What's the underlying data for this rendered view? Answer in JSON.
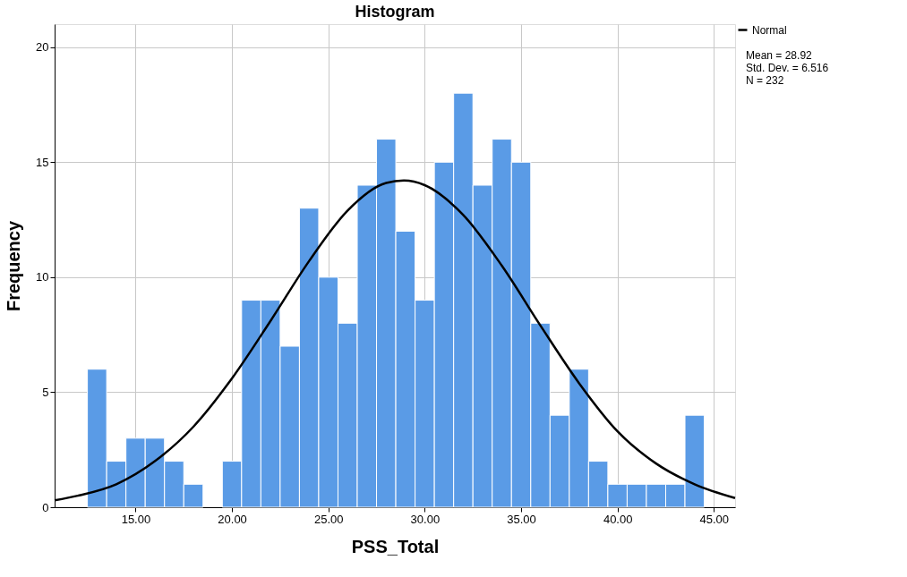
{
  "chart_data": {
    "type": "histogram",
    "title": "Histogram",
    "xlabel": "PSS_Total",
    "ylabel": "Frequency",
    "bins": [
      12.5,
      13.5,
      14.5,
      15.5,
      16.5,
      17.5,
      18.5,
      19.5,
      20.5,
      21.5,
      22.5,
      23.5,
      24.5,
      25.5,
      26.5,
      27.5,
      28.5,
      29.5,
      30.5,
      31.5,
      32.5,
      33.5,
      34.5,
      35.5,
      36.5,
      37.5,
      38.5,
      39.5,
      40.5,
      41.5,
      42.5,
      43.5,
      44.5
    ],
    "values": [
      6,
      2,
      3,
      3,
      2,
      1,
      0,
      2,
      9,
      9,
      7,
      13,
      10,
      8,
      14,
      16,
      12,
      9,
      15,
      18,
      14,
      16,
      15,
      8,
      4,
      6,
      2,
      1,
      1,
      1,
      1,
      4
    ],
    "color": "#5a9be6",
    "series": [
      {
        "type": "line",
        "name": "Normal",
        "color": "#000000",
        "x": [
          10.8,
          12,
          14,
          16,
          18,
          20,
          22,
          24,
          26,
          28,
          28.92,
          30,
          32,
          34,
          36,
          38,
          40,
          42,
          44,
          46.1
        ],
        "values": [
          0.3,
          0.5,
          1.0,
          2.0,
          3.5,
          5.6,
          8.1,
          10.7,
          12.9,
          14.1,
          14.2,
          14.0,
          12.7,
          10.5,
          7.9,
          5.4,
          3.3,
          1.9,
          1.0,
          0.4
        ]
      }
    ],
    "xlim": [
      10.8,
      46.1
    ],
    "ylim": [
      0,
      21
    ],
    "xticks": [
      {
        "value": 15,
        "label": "15.00"
      },
      {
        "value": 20,
        "label": "20.00"
      },
      {
        "value": 25,
        "label": "25.00"
      },
      {
        "value": 30,
        "label": "30.00"
      },
      {
        "value": 35,
        "label": "35.00"
      },
      {
        "value": 40,
        "label": "40.00"
      },
      {
        "value": 45,
        "label": "45.00"
      }
    ],
    "yticks": [
      0,
      5,
      10,
      15,
      20
    ],
    "grid": true,
    "legend": "top right",
    "annotations": [
      "Mean = 28.92",
      "Std. Dev. = 6.516",
      "N = 232"
    ]
  }
}
